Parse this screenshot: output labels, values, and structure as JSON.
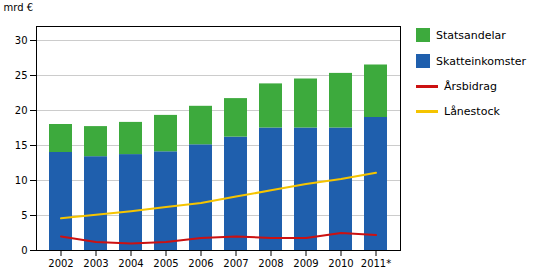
{
  "chart_data": {
    "type": "bar",
    "stacked": true,
    "ylabel": "mrd €",
    "categories": [
      "2002",
      "2003",
      "2004",
      "2005",
      "2006",
      "2007",
      "2008",
      "2009",
      "2010",
      "2011*"
    ],
    "series": [
      {
        "name": "Skatteinkomster",
        "type": "bar",
        "color": "#1F5FAD",
        "values": [
          14.0,
          13.4,
          13.7,
          14.1,
          15.1,
          16.2,
          17.5,
          17.5,
          17.5,
          19.0
        ]
      },
      {
        "name": "Statsandelar",
        "type": "bar",
        "color": "#3DAA3D",
        "values": [
          4.0,
          4.3,
          4.6,
          5.2,
          5.5,
          5.5,
          6.3,
          7.0,
          7.8,
          7.5
        ]
      },
      {
        "name": "Årsbidrag",
        "type": "line",
        "color": "#CC1111",
        "values": [
          2.0,
          1.2,
          1.0,
          1.2,
          1.8,
          2.0,
          1.8,
          1.8,
          2.5,
          2.2
        ]
      },
      {
        "name": "Lånestock",
        "type": "line",
        "color": "#F5C400",
        "values": [
          4.6,
          5.1,
          5.6,
          6.2,
          6.8,
          7.7,
          8.6,
          9.5,
          10.2,
          11.1
        ]
      }
    ],
    "ylim": [
      0,
      32
    ],
    "yticks": [
      0,
      5,
      10,
      15,
      20,
      25,
      30
    ],
    "grid": true,
    "legend": "right"
  }
}
